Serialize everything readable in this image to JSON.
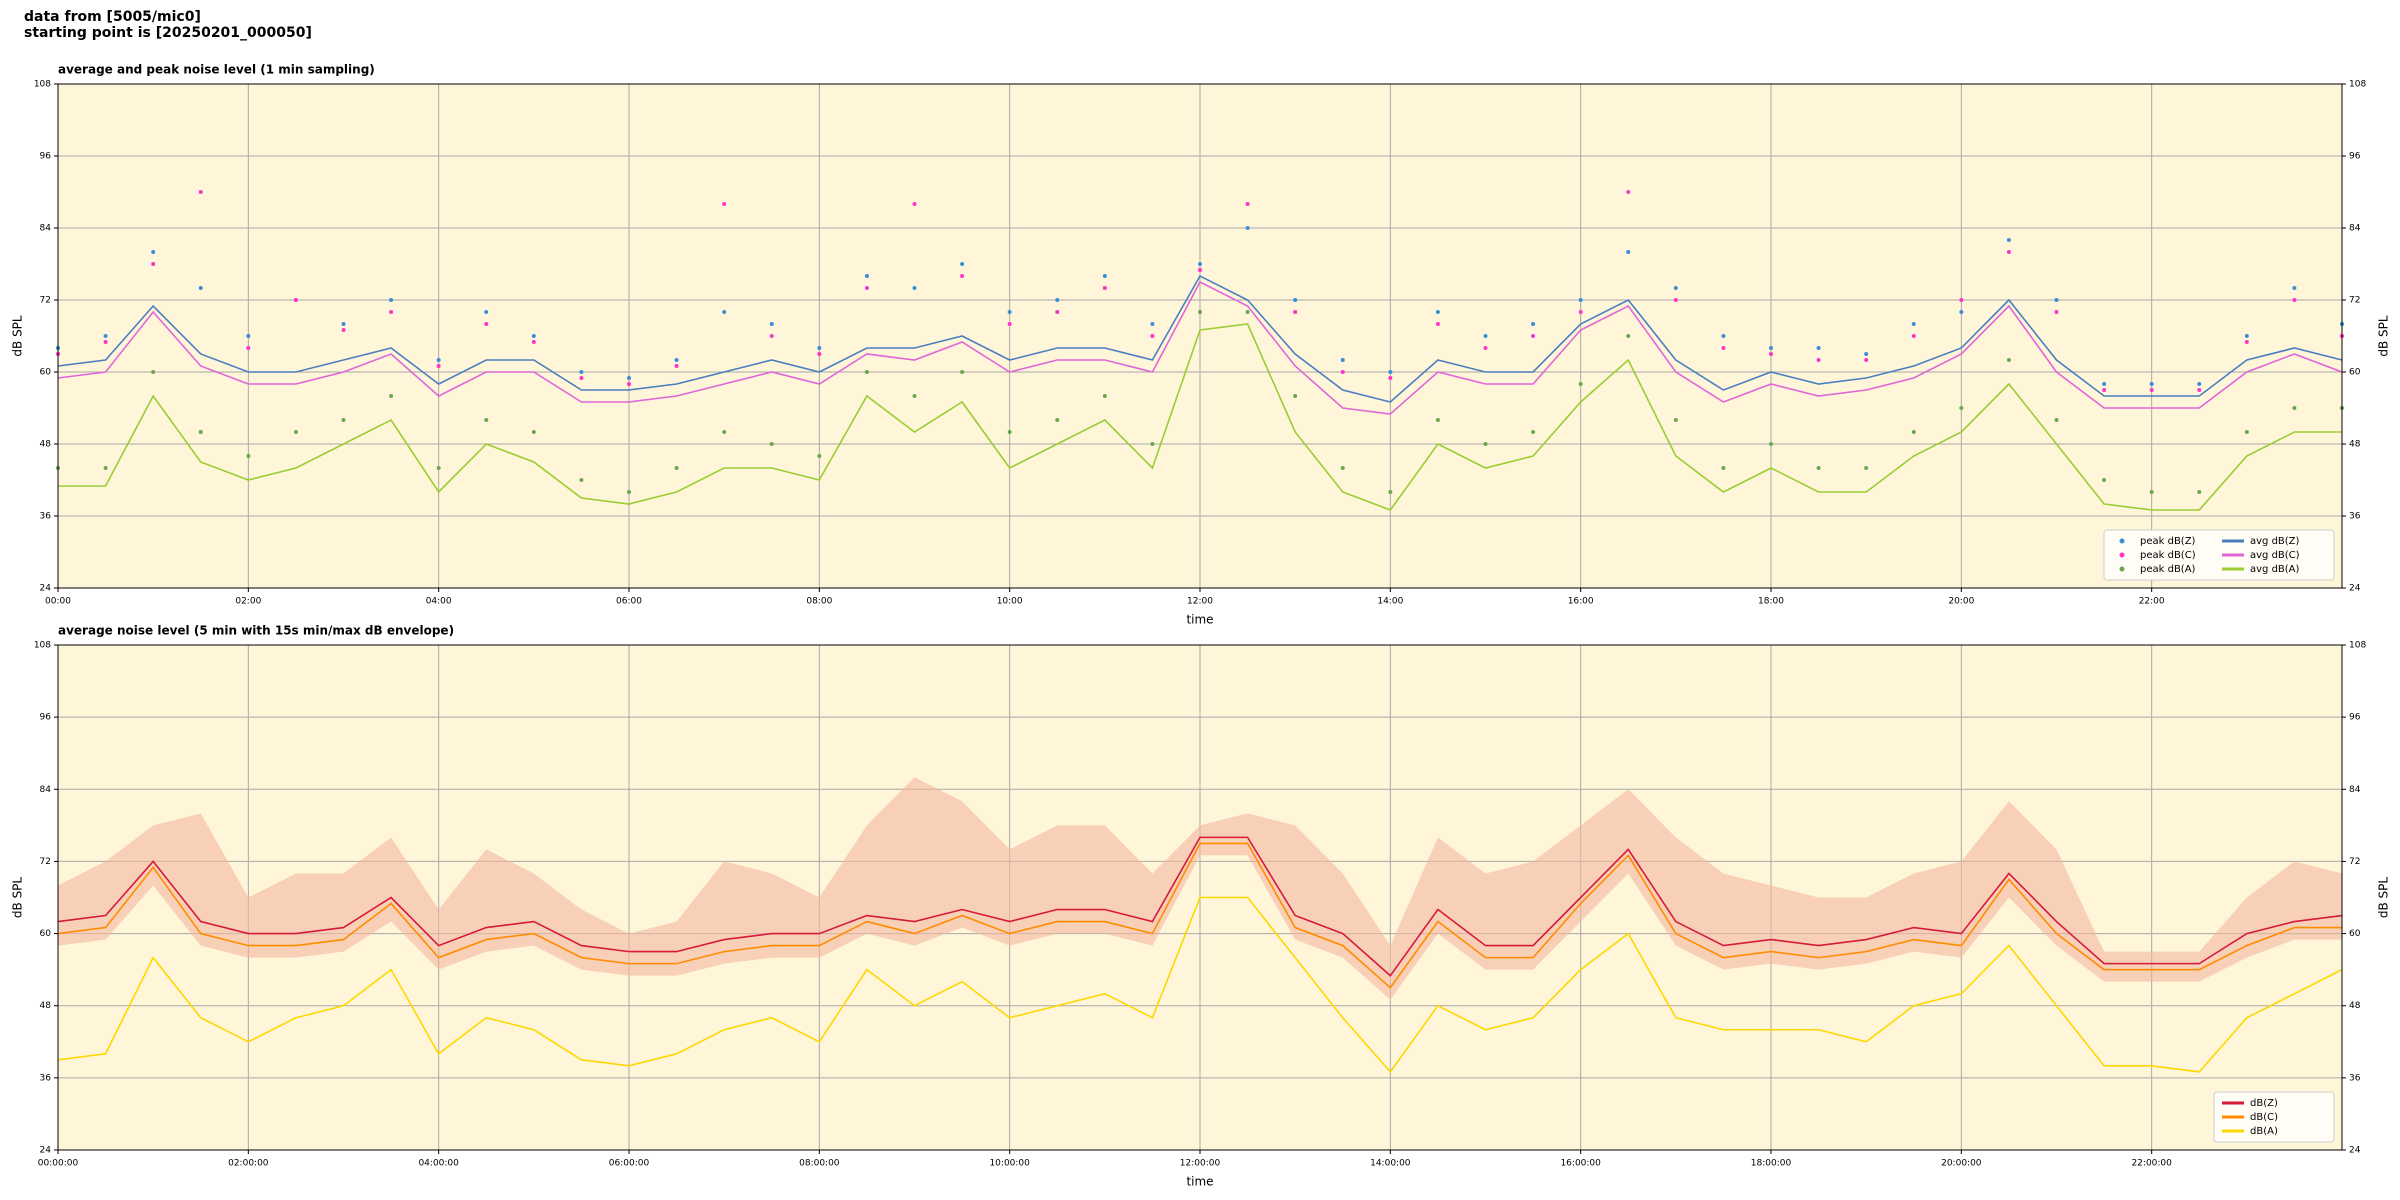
{
  "header": {
    "lines": [
      "data from [5005/mic0]",
      "starting point is [20250201_000050]"
    ]
  },
  "chart_data": [
    {
      "type": "line",
      "title": "average and peak noise level (1 min sampling)",
      "xlabel": "time",
      "ylabel": "dB SPL",
      "x": [
        0,
        0.5,
        1,
        1.5,
        2,
        2.5,
        3,
        3.5,
        4,
        4.5,
        5,
        5.5,
        6,
        6.5,
        7,
        7.5,
        8,
        8.5,
        9,
        9.5,
        10,
        10.5,
        11,
        11.5,
        12,
        12.5,
        13,
        13.5,
        14,
        14.5,
        15,
        15.5,
        16,
        16.5,
        17,
        17.5,
        18,
        18.5,
        19,
        19.5,
        20,
        20.5,
        21,
        21.5,
        22,
        22.5,
        23,
        23.5,
        24
      ],
      "xlim": [
        0,
        24
      ],
      "xticks": [
        {
          "value": 0,
          "label": "00:00"
        },
        {
          "value": 2,
          "label": "02:00"
        },
        {
          "value": 4,
          "label": "04:00"
        },
        {
          "value": 6,
          "label": "06:00"
        },
        {
          "value": 8,
          "label": "08:00"
        },
        {
          "value": 10,
          "label": "10:00"
        },
        {
          "value": 12,
          "label": "12:00"
        },
        {
          "value": 14,
          "label": "14:00"
        },
        {
          "value": 16,
          "label": "16:00"
        },
        {
          "value": 18,
          "label": "18:00"
        },
        {
          "value": 20,
          "label": "20:00"
        },
        {
          "value": 22,
          "label": "22:00"
        }
      ],
      "ylim": [
        24,
        108
      ],
      "yticks": [
        24,
        36,
        48,
        60,
        72,
        84,
        96,
        108
      ],
      "grid": true,
      "legend": "lower right",
      "legend_columns": 2,
      "series": [
        {
          "name": "peak dB(Z)",
          "style": "dots",
          "color": "#3b8fd9",
          "values": [
            64,
            66,
            80,
            74,
            66,
            72,
            68,
            72,
            62,
            70,
            66,
            60,
            59,
            62,
            70,
            68,
            64,
            76,
            74,
            78,
            70,
            72,
            76,
            68,
            78,
            84,
            72,
            62,
            60,
            70,
            66,
            68,
            72,
            80,
            74,
            66,
            64,
            64,
            63,
            68,
            70,
            82,
            72,
            58,
            58,
            58,
            66,
            74,
            68
          ]
        },
        {
          "name": "peak dB(C)",
          "style": "dots",
          "color": "#ff33cc",
          "values": [
            63,
            65,
            78,
            90,
            64,
            72,
            67,
            70,
            61,
            68,
            65,
            59,
            58,
            61,
            88,
            66,
            63,
            74,
            88,
            76,
            68,
            70,
            74,
            66,
            77,
            88,
            70,
            60,
            59,
            68,
            64,
            66,
            70,
            90,
            72,
            64,
            63,
            62,
            62,
            66,
            72,
            80,
            70,
            57,
            57,
            57,
            65,
            72,
            66
          ]
        },
        {
          "name": "peak dB(A)",
          "style": "dots",
          "color": "#6aa84f",
          "values": [
            44,
            44,
            60,
            50,
            46,
            50,
            52,
            56,
            44,
            52,
            50,
            42,
            40,
            44,
            50,
            48,
            46,
            60,
            56,
            60,
            50,
            52,
            56,
            48,
            70,
            70,
            56,
            44,
            40,
            52,
            48,
            50,
            58,
            66,
            52,
            44,
            48,
            44,
            44,
            50,
            54,
            62,
            52,
            42,
            40,
            40,
            50,
            54,
            54
          ]
        },
        {
          "name": "avg dB(Z)",
          "style": "line",
          "color": "#4a7fbf",
          "values": [
            61,
            62,
            71,
            63,
            60,
            60,
            62,
            64,
            58,
            62,
            62,
            57,
            57,
            58,
            60,
            62,
            60,
            64,
            64,
            66,
            62,
            64,
            64,
            62,
            76,
            72,
            63,
            57,
            55,
            62,
            60,
            60,
            68,
            72,
            62,
            57,
            60,
            58,
            59,
            61,
            64,
            72,
            62,
            56,
            56,
            56,
            62,
            64,
            62
          ]
        },
        {
          "name": "avg dB(C)",
          "style": "line",
          "color": "#e066d8",
          "values": [
            59,
            60,
            70,
            61,
            58,
            58,
            60,
            63,
            56,
            60,
            60,
            55,
            55,
            56,
            58,
            60,
            58,
            63,
            62,
            65,
            60,
            62,
            62,
            60,
            75,
            71,
            61,
            54,
            53,
            60,
            58,
            58,
            67,
            71,
            60,
            55,
            58,
            56,
            57,
            59,
            63,
            71,
            60,
            54,
            54,
            54,
            60,
            63,
            60
          ]
        },
        {
          "name": "avg dB(A)",
          "style": "line",
          "color": "#9acd32",
          "values": [
            41,
            41,
            56,
            45,
            42,
            44,
            48,
            52,
            40,
            48,
            45,
            39,
            38,
            40,
            44,
            44,
            42,
            56,
            50,
            55,
            44,
            48,
            52,
            44,
            67,
            68,
            50,
            40,
            37,
            48,
            44,
            46,
            55,
            62,
            46,
            40,
            44,
            40,
            40,
            46,
            50,
            58,
            48,
            38,
            37,
            37,
            46,
            50,
            50
          ]
        }
      ]
    },
    {
      "type": "line",
      "title": "average noise level (5 min with 15s min/max dB envelope)",
      "xlabel": "time",
      "ylabel": "dB SPL",
      "x": [
        0,
        0.5,
        1,
        1.5,
        2,
        2.5,
        3,
        3.5,
        4,
        4.5,
        5,
        5.5,
        6,
        6.5,
        7,
        7.5,
        8,
        8.5,
        9,
        9.5,
        10,
        10.5,
        11,
        11.5,
        12,
        12.5,
        13,
        13.5,
        14,
        14.5,
        15,
        15.5,
        16,
        16.5,
        17,
        17.5,
        18,
        18.5,
        19,
        19.5,
        20,
        20.5,
        21,
        21.5,
        22,
        22.5,
        23,
        23.5,
        24
      ],
      "xlim": [
        0,
        24
      ],
      "xticks": [
        {
          "value": 0,
          "label": "00:00:00"
        },
        {
          "value": 2,
          "label": "02:00:00"
        },
        {
          "value": 4,
          "label": "04:00:00"
        },
        {
          "value": 6,
          "label": "06:00:00"
        },
        {
          "value": 8,
          "label": "08:00:00"
        },
        {
          "value": 10,
          "label": "10:00:00"
        },
        {
          "value": 12,
          "label": "12:00:00"
        },
        {
          "value": 14,
          "label": "14:00:00"
        },
        {
          "value": 16,
          "label": "16:00:00"
        },
        {
          "value": 18,
          "label": "18:00:00"
        },
        {
          "value": 20,
          "label": "20:00:00"
        },
        {
          "value": 22,
          "label": "22:00:00"
        }
      ],
      "ylim": [
        24,
        108
      ],
      "yticks": [
        24,
        36,
        48,
        60,
        72,
        84,
        96,
        108
      ],
      "grid": true,
      "legend": "lower right",
      "legend_columns": 1,
      "envelope": {
        "color": "#f4b8a0",
        "high": [
          68,
          72,
          78,
          80,
          66,
          70,
          70,
          76,
          64,
          74,
          70,
          64,
          60,
          62,
          72,
          70,
          66,
          78,
          86,
          82,
          74,
          78,
          78,
          70,
          78,
          80,
          78,
          70,
          58,
          76,
          70,
          72,
          78,
          84,
          76,
          70,
          68,
          66,
          66,
          70,
          72,
          82,
          74,
          57,
          57,
          57,
          66,
          72,
          70
        ],
        "low": [
          58,
          59,
          68,
          58,
          56,
          56,
          57,
          62,
          54,
          57,
          58,
          54,
          53,
          53,
          55,
          56,
          56,
          60,
          58,
          61,
          58,
          60,
          60,
          58,
          73,
          73,
          59,
          56,
          49,
          60,
          54,
          54,
          62,
          70,
          58,
          54,
          55,
          54,
          55,
          57,
          56,
          66,
          58,
          52,
          52,
          52,
          56,
          59,
          59
        ]
      },
      "series": [
        {
          "name": "dB(Z)",
          "style": "line",
          "color": "#d7193c",
          "values": [
            62,
            63,
            72,
            62,
            60,
            60,
            61,
            66,
            58,
            61,
            62,
            58,
            57,
            57,
            59,
            60,
            60,
            63,
            62,
            64,
            62,
            64,
            64,
            62,
            76,
            76,
            63,
            60,
            53,
            64,
            58,
            58,
            66,
            74,
            62,
            58,
            59,
            58,
            59,
            61,
            60,
            70,
            62,
            55,
            55,
            55,
            60,
            62,
            63
          ]
        },
        {
          "name": "dB(C)",
          "style": "line",
          "color": "#ff8c00",
          "values": [
            60,
            61,
            71,
            60,
            58,
            58,
            59,
            65,
            56,
            59,
            60,
            56,
            55,
            55,
            57,
            58,
            58,
            62,
            60,
            63,
            60,
            62,
            62,
            60,
            75,
            75,
            61,
            58,
            51,
            62,
            56,
            56,
            65,
            73,
            60,
            56,
            57,
            56,
            57,
            59,
            58,
            69,
            60,
            54,
            54,
            54,
            58,
            61,
            61
          ]
        },
        {
          "name": "dB(A)",
          "style": "line",
          "color": "#ffd700",
          "values": [
            39,
            40,
            56,
            46,
            42,
            46,
            48,
            54,
            40,
            46,
            44,
            39,
            38,
            40,
            44,
            46,
            42,
            54,
            48,
            52,
            46,
            48,
            50,
            46,
            66,
            66,
            56,
            46,
            37,
            48,
            44,
            46,
            54,
            60,
            46,
            44,
            44,
            44,
            42,
            48,
            50,
            58,
            48,
            38,
            38,
            37,
            46,
            50,
            54
          ]
        }
      ]
    }
  ]
}
